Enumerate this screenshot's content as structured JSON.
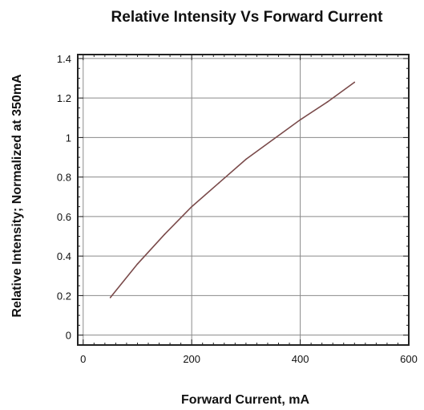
{
  "chart_data": {
    "type": "line",
    "title": "Relative Intensity Vs Forward Current",
    "xlabel": "Forward Current, mA",
    "ylabel": "Relative Intensity; Normalized at 350mA",
    "xlim": [
      -10,
      600
    ],
    "ylim": [
      -0.05,
      1.42
    ],
    "xticks": [
      0,
      200,
      400,
      600
    ],
    "xtick_labels": [
      "0",
      "200",
      "400",
      "600"
    ],
    "yticks": [
      0,
      0.2,
      0.4,
      0.6,
      0.8,
      1.0,
      1.2,
      1.4
    ],
    "ytick_labels": [
      "0",
      "0.2",
      "0.4",
      "0.6",
      "0.8",
      "1",
      "1.2",
      "1.4"
    ],
    "grid": true,
    "series": [
      {
        "color": "#7a4a4a",
        "x": [
          50,
          100,
          150,
          200,
          250,
          300,
          350,
          400,
          450,
          500
        ],
        "y": [
          0.19,
          0.36,
          0.51,
          0.65,
          0.77,
          0.89,
          0.99,
          1.09,
          1.18,
          1.28
        ]
      }
    ]
  }
}
